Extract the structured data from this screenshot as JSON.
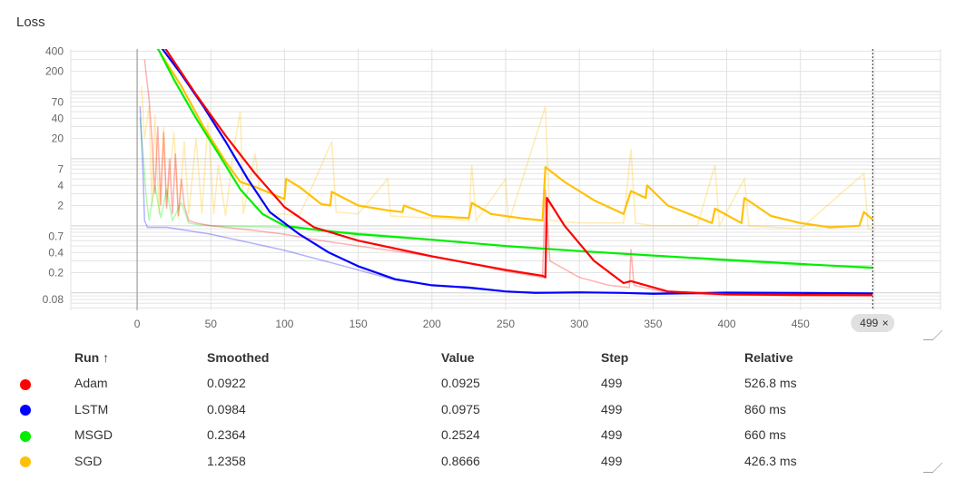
{
  "card": {
    "title": "Loss"
  },
  "chart_data": {
    "type": "line",
    "xlabel": "",
    "ylabel": "",
    "yscale": "log",
    "xlim": [
      -45,
      545
    ],
    "ylim": [
      0.055,
      430
    ],
    "x_ticks": [
      "0",
      "50",
      "100",
      "150",
      "200",
      "250",
      "300",
      "350",
      "400",
      "450",
      "500"
    ],
    "y_ticks": [
      0.08,
      0.2,
      0.4,
      0.7,
      2,
      4,
      7,
      20,
      40,
      70,
      200,
      400
    ],
    "y_tick_labels": [
      "0.08",
      "0.2",
      "0.4",
      "0.7",
      "2",
      "4",
      "7",
      "20",
      "40",
      "70",
      "200",
      "400"
    ],
    "hover_step": 499,
    "hover_badge": "499",
    "series": [
      {
        "name": "Adam",
        "color": "#ff0000",
        "smoothed": [
          [
            5,
            900
          ],
          [
            15,
            600
          ],
          [
            25,
            280
          ],
          [
            40,
            90
          ],
          [
            60,
            22
          ],
          [
            80,
            6
          ],
          [
            100,
            1.9
          ],
          [
            120,
            0.95
          ],
          [
            150,
            0.6
          ],
          [
            200,
            0.35
          ],
          [
            250,
            0.22
          ],
          [
            275,
            0.18
          ],
          [
            277,
            0.17
          ],
          [
            278,
            2.6
          ],
          [
            290,
            1.0
          ],
          [
            310,
            0.3
          ],
          [
            330,
            0.14
          ],
          [
            335,
            0.15
          ],
          [
            360,
            0.105
          ],
          [
            400,
            0.095
          ],
          [
            450,
            0.093
          ],
          [
            499,
            0.0922
          ]
        ],
        "raw": [
          [
            5,
            300
          ],
          [
            8,
            80
          ],
          [
            10,
            20
          ],
          [
            12,
            3
          ],
          [
            14,
            30
          ],
          [
            16,
            2
          ],
          [
            18,
            25
          ],
          [
            20,
            1.8
          ],
          [
            22,
            10
          ],
          [
            24,
            1.5
          ],
          [
            26,
            12
          ],
          [
            28,
            1.4
          ],
          [
            30,
            5
          ],
          [
            32,
            2
          ],
          [
            35,
            1.2
          ],
          [
            40,
            1.1
          ],
          [
            50,
            1.0
          ],
          [
            60,
            0.95
          ],
          [
            70,
            0.9
          ],
          [
            100,
            0.75
          ],
          [
            125,
            0.6
          ],
          [
            150,
            0.5
          ],
          [
            175,
            0.42
          ],
          [
            200,
            0.35
          ],
          [
            225,
            0.28
          ],
          [
            250,
            0.21
          ],
          [
            275,
            0.17
          ],
          [
            277,
            3.5
          ],
          [
            280,
            0.3
          ],
          [
            300,
            0.17
          ],
          [
            320,
            0.13
          ],
          [
            334,
            0.12
          ],
          [
            335,
            0.45
          ],
          [
            337,
            0.13
          ],
          [
            360,
            0.1
          ],
          [
            400,
            0.093
          ],
          [
            450,
            0.091
          ],
          [
            499,
            0.0925
          ]
        ]
      },
      {
        "name": "LSTM",
        "color": "#0000ff",
        "smoothed": [
          [
            5,
            900
          ],
          [
            15,
            500
          ],
          [
            30,
            180
          ],
          [
            45,
            60
          ],
          [
            60,
            18
          ],
          [
            75,
            5
          ],
          [
            90,
            1.6
          ],
          [
            110,
            0.75
          ],
          [
            130,
            0.4
          ],
          [
            150,
            0.25
          ],
          [
            175,
            0.16
          ],
          [
            200,
            0.13
          ],
          [
            225,
            0.12
          ],
          [
            250,
            0.105
          ],
          [
            270,
            0.1
          ],
          [
            300,
            0.102
          ],
          [
            330,
            0.1
          ],
          [
            350,
            0.097
          ],
          [
            400,
            0.101
          ],
          [
            450,
            0.1
          ],
          [
            499,
            0.0984
          ]
        ],
        "raw": [
          [
            2,
            60
          ],
          [
            4,
            6
          ],
          [
            5,
            1.2
          ],
          [
            7,
            0.95
          ],
          [
            20,
            0.95
          ],
          [
            50,
            0.75
          ],
          [
            100,
            0.43
          ],
          [
            150,
            0.22
          ],
          [
            175,
            0.155
          ],
          [
            200,
            0.13
          ],
          [
            250,
            0.105
          ],
          [
            300,
            0.1
          ],
          [
            400,
            0.1
          ],
          [
            499,
            0.0975
          ]
        ]
      },
      {
        "name": "MSGD",
        "color": "#00ee00",
        "smoothed": [
          [
            5,
            900
          ],
          [
            15,
            400
          ],
          [
            25,
            150
          ],
          [
            40,
            40
          ],
          [
            55,
            12
          ],
          [
            70,
            3.5
          ],
          [
            85,
            1.5
          ],
          [
            100,
            1.0
          ],
          [
            125,
            0.85
          ],
          [
            150,
            0.75
          ],
          [
            200,
            0.62
          ],
          [
            250,
            0.5
          ],
          [
            300,
            0.42
          ],
          [
            350,
            0.36
          ],
          [
            400,
            0.31
          ],
          [
            450,
            0.27
          ],
          [
            499,
            0.2364
          ]
        ],
        "raw": [
          [
            2,
            40
          ],
          [
            4,
            12
          ],
          [
            6,
            3
          ],
          [
            8,
            1.2
          ],
          [
            12,
            4
          ],
          [
            16,
            1.3
          ],
          [
            20,
            3.5
          ],
          [
            24,
            1.2
          ],
          [
            30,
            2.2
          ],
          [
            35,
            1.1
          ],
          [
            40,
            1.05
          ],
          [
            50,
            1.0
          ],
          [
            100,
            0.95
          ],
          [
            150,
            0.78
          ],
          [
            200,
            0.63
          ],
          [
            250,
            0.5
          ],
          [
            300,
            0.42
          ],
          [
            350,
            0.36
          ],
          [
            400,
            0.3
          ],
          [
            450,
            0.26
          ],
          [
            499,
            0.2524
          ]
        ]
      },
      {
        "name": "SGD",
        "color": "#ffc107",
        "smoothed": [
          [
            5,
            900
          ],
          [
            15,
            400
          ],
          [
            30,
            120
          ],
          [
            45,
            30
          ],
          [
            60,
            9
          ],
          [
            70,
            4.5
          ],
          [
            80,
            3.8
          ],
          [
            100,
            2.5
          ],
          [
            101,
            5.0
          ],
          [
            110,
            3.8
          ],
          [
            125,
            2.1
          ],
          [
            131,
            2.0
          ],
          [
            132,
            3.2
          ],
          [
            150,
            2.0
          ],
          [
            170,
            1.7
          ],
          [
            180,
            1.6
          ],
          [
            181,
            2.0
          ],
          [
            200,
            1.4
          ],
          [
            225,
            1.3
          ],
          [
            227,
            2.2
          ],
          [
            240,
            1.5
          ],
          [
            260,
            1.3
          ],
          [
            275,
            1.2
          ],
          [
            277,
            7.5
          ],
          [
            290,
            4.5
          ],
          [
            310,
            2.4
          ],
          [
            330,
            1.5
          ],
          [
            335,
            3.3
          ],
          [
            345,
            2.6
          ],
          [
            346,
            4.0
          ],
          [
            360,
            2.0
          ],
          [
            390,
            1.1
          ],
          [
            392,
            1.8
          ],
          [
            410,
            1.1
          ],
          [
            412,
            2.6
          ],
          [
            430,
            1.4
          ],
          [
            450,
            1.1
          ],
          [
            470,
            0.95
          ],
          [
            490,
            1.0
          ],
          [
            493,
            1.6
          ],
          [
            499,
            1.2358
          ]
        ],
        "raw": [
          [
            3,
            120
          ],
          [
            5,
            20
          ],
          [
            8,
            60
          ],
          [
            10,
            2
          ],
          [
            12,
            45
          ],
          [
            15,
            1.5
          ],
          [
            18,
            30
          ],
          [
            20,
            2
          ],
          [
            25,
            25
          ],
          [
            28,
            1.3
          ],
          [
            32,
            18
          ],
          [
            35,
            1.5
          ],
          [
            40,
            20
          ],
          [
            44,
            1.5
          ],
          [
            48,
            35
          ],
          [
            52,
            1.5
          ],
          [
            55,
            8
          ],
          [
            60,
            1.4
          ],
          [
            65,
            12
          ],
          [
            70,
            50
          ],
          [
            72,
            1.5
          ],
          [
            80,
            12
          ],
          [
            85,
            1.5
          ],
          [
            100,
            1.5
          ],
          [
            110,
            1.4
          ],
          [
            132,
            18
          ],
          [
            135,
            1.6
          ],
          [
            150,
            1.5
          ],
          [
            170,
            5
          ],
          [
            172,
            1.4
          ],
          [
            200,
            1.3
          ],
          [
            225,
            1.2
          ],
          [
            227,
            8
          ],
          [
            230,
            1.2
          ],
          [
            250,
            5
          ],
          [
            252,
            1.1
          ],
          [
            277,
            60
          ],
          [
            280,
            1.2
          ],
          [
            300,
            1.1
          ],
          [
            330,
            1.1
          ],
          [
            335,
            14
          ],
          [
            338,
            1.1
          ],
          [
            350,
            1.0
          ],
          [
            380,
            1.0
          ],
          [
            392,
            8
          ],
          [
            395,
            1.0
          ],
          [
            412,
            5
          ],
          [
            415,
            1.0
          ],
          [
            450,
            0.9
          ],
          [
            493,
            6
          ],
          [
            496,
            0.9
          ],
          [
            499,
            0.8666
          ]
        ]
      }
    ]
  },
  "table": {
    "headers": {
      "run": "Run ↑",
      "smoothed": "Smoothed",
      "value": "Value",
      "step": "Step",
      "relative": "Relative"
    },
    "rows": [
      {
        "color": "#ff0000",
        "run": "Adam",
        "smoothed": "0.0922",
        "value": "0.0925",
        "step": "499",
        "relative": "526.8 ms"
      },
      {
        "color": "#0000ff",
        "run": "LSTM",
        "smoothed": "0.0984",
        "value": "0.0975",
        "step": "499",
        "relative": "860 ms"
      },
      {
        "color": "#00ee00",
        "run": "MSGD",
        "smoothed": "0.2364",
        "value": "0.2524",
        "step": "499",
        "relative": "660 ms"
      },
      {
        "color": "#ffc107",
        "run": "SGD",
        "smoothed": "1.2358",
        "value": "0.8666",
        "step": "499",
        "relative": "426.3 ms"
      }
    ]
  }
}
